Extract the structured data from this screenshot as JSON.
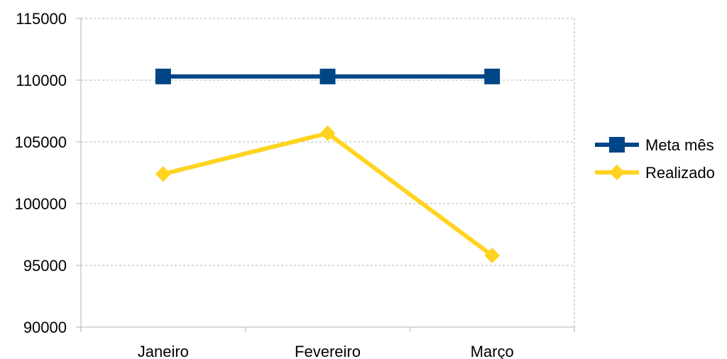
{
  "chart_data": {
    "type": "line",
    "title": "",
    "xlabel": "",
    "ylabel": "",
    "categories": [
      "Janeiro",
      "Fevereiro",
      "Março"
    ],
    "ylim": [
      90000,
      115000
    ],
    "yticks": [
      90000,
      95000,
      100000,
      105000,
      110000,
      115000
    ],
    "grid": true,
    "legend_position": "right",
    "series": [
      {
        "name": "Meta mês",
        "values": [
          110300,
          110300,
          110300
        ],
        "color": "#004586",
        "marker": "square"
      },
      {
        "name": "Realizado",
        "values": [
          102400,
          105700,
          95800
        ],
        "color": "#ffd320",
        "marker": "diamond"
      }
    ]
  }
}
